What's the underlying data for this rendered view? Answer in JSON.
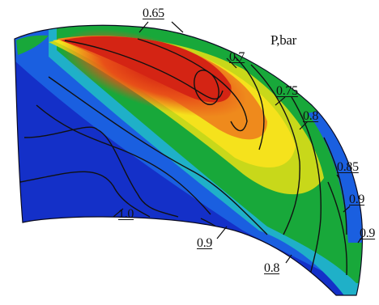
{
  "plot": {
    "title": "P,bar",
    "colormap": [
      "#1212b8",
      "#1a5fe0",
      "#1fc0c0",
      "#18a83a",
      "#c8d81a",
      "#f5e21c",
      "#ef8a1c",
      "#d42414"
    ],
    "contour_labels": [
      {
        "id": "c065",
        "text": "0.65"
      },
      {
        "id": "c07",
        "text": "0.7"
      },
      {
        "id": "c075",
        "text": "0.75"
      },
      {
        "id": "c08a",
        "text": "0.8"
      },
      {
        "id": "c085",
        "text": "0.85"
      },
      {
        "id": "c09a",
        "text": "0.9"
      },
      {
        "id": "c09b",
        "text": "0.9"
      },
      {
        "id": "c10",
        "text": "1.0"
      },
      {
        "id": "c09c",
        "text": "0.9"
      },
      {
        "id": "c08b",
        "text": "0.8"
      }
    ]
  }
}
